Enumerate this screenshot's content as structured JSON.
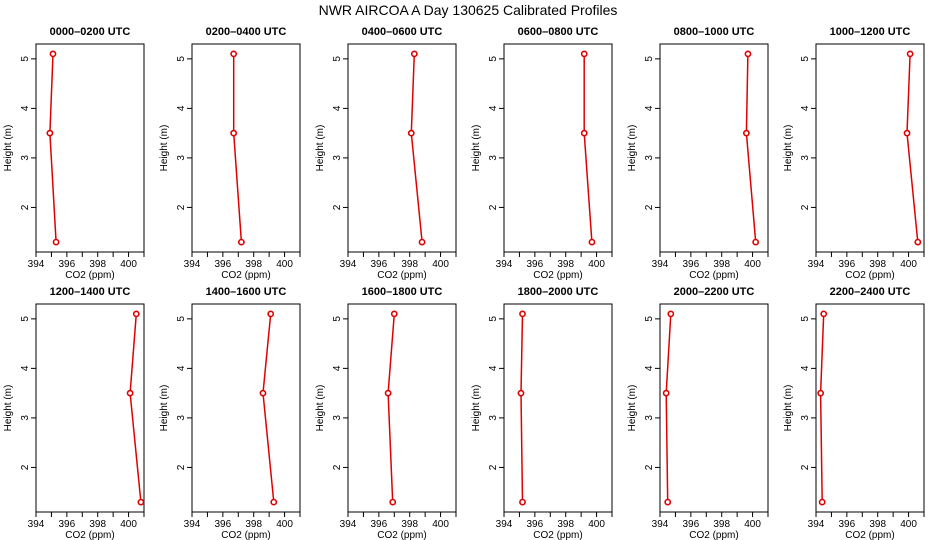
{
  "figure": {
    "title": "NWR AIRCOA A  Day 130625  Calibrated Profiles"
  },
  "chart_data": [
    {
      "type": "line",
      "title": "0000–0200 UTC",
      "xlabel": "CO2 (ppm)",
      "ylabel": "Height (m)",
      "xlim": [
        394,
        401
      ],
      "ylim": [
        1.1,
        5.3
      ],
      "xticks": [
        394,
        396,
        398,
        400
      ],
      "yticks": [
        2,
        3,
        4,
        5
      ],
      "series": [
        {
          "x": [
            395.1,
            394.9,
            395.3
          ],
          "y": [
            5.1,
            3.5,
            1.3
          ]
        }
      ]
    },
    {
      "type": "line",
      "title": "0200–0400 UTC",
      "xlabel": "CO2 (ppm)",
      "ylabel": "Height (m)",
      "xlim": [
        394,
        401
      ],
      "ylim": [
        1.1,
        5.3
      ],
      "xticks": [
        394,
        396,
        398,
        400
      ],
      "yticks": [
        2,
        3,
        4,
        5
      ],
      "series": [
        {
          "x": [
            396.7,
            396.7,
            397.2
          ],
          "y": [
            5.1,
            3.5,
            1.3
          ]
        }
      ]
    },
    {
      "type": "line",
      "title": "0400–0600 UTC",
      "xlabel": "CO2 (ppm)",
      "ylabel": "Height (m)",
      "xlim": [
        394,
        401
      ],
      "ylim": [
        1.1,
        5.3
      ],
      "xticks": [
        394,
        396,
        398,
        400
      ],
      "yticks": [
        2,
        3,
        4,
        5
      ],
      "series": [
        {
          "x": [
            398.3,
            398.1,
            398.8
          ],
          "y": [
            5.1,
            3.5,
            1.3
          ]
        }
      ]
    },
    {
      "type": "line",
      "title": "0600–0800 UTC",
      "xlabel": "CO2 (ppm)",
      "ylabel": "Height (m)",
      "xlim": [
        394,
        401
      ],
      "ylim": [
        1.1,
        5.3
      ],
      "xticks": [
        394,
        396,
        398,
        400
      ],
      "yticks": [
        2,
        3,
        4,
        5
      ],
      "series": [
        {
          "x": [
            399.2,
            399.2,
            399.7
          ],
          "y": [
            5.1,
            3.5,
            1.3
          ]
        }
      ]
    },
    {
      "type": "line",
      "title": "0800–1000 UTC",
      "xlabel": "CO2 (ppm)",
      "ylabel": "Height (m)",
      "xlim": [
        394,
        401
      ],
      "ylim": [
        1.1,
        5.3
      ],
      "xticks": [
        394,
        396,
        398,
        400
      ],
      "yticks": [
        2,
        3,
        4,
        5
      ],
      "series": [
        {
          "x": [
            399.7,
            399.6,
            400.2
          ],
          "y": [
            5.1,
            3.5,
            1.3
          ]
        }
      ]
    },
    {
      "type": "line",
      "title": "1000–1200 UTC",
      "xlabel": "CO2 (ppm)",
      "ylabel": "Height (m)",
      "xlim": [
        394,
        401
      ],
      "ylim": [
        1.1,
        5.3
      ],
      "xticks": [
        394,
        396,
        398,
        400
      ],
      "yticks": [
        2,
        3,
        4,
        5
      ],
      "series": [
        {
          "x": [
            400.1,
            399.9,
            400.6
          ],
          "y": [
            5.1,
            3.5,
            1.3
          ]
        }
      ]
    },
    {
      "type": "line",
      "title": "1200–1400 UTC",
      "xlabel": "CO2 (ppm)",
      "ylabel": "Height (m)",
      "xlim": [
        394,
        401
      ],
      "ylim": [
        1.1,
        5.3
      ],
      "xticks": [
        394,
        396,
        398,
        400
      ],
      "yticks": [
        2,
        3,
        4,
        5
      ],
      "series": [
        {
          "x": [
            400.5,
            400.1,
            400.8
          ],
          "y": [
            5.1,
            3.5,
            1.3
          ]
        }
      ]
    },
    {
      "type": "line",
      "title": "1400–1600 UTC",
      "xlabel": "CO2 (ppm)",
      "ylabel": "Height (m)",
      "xlim": [
        394,
        401
      ],
      "ylim": [
        1.1,
        5.3
      ],
      "xticks": [
        394,
        396,
        398,
        400
      ],
      "yticks": [
        2,
        3,
        4,
        5
      ],
      "series": [
        {
          "x": [
            399.1,
            398.6,
            399.3
          ],
          "y": [
            5.1,
            3.5,
            1.3
          ]
        }
      ]
    },
    {
      "type": "line",
      "title": "1600–1800 UTC",
      "xlabel": "CO2 (ppm)",
      "ylabel": "Height (m)",
      "xlim": [
        394,
        401
      ],
      "ylim": [
        1.1,
        5.3
      ],
      "xticks": [
        394,
        396,
        398,
        400
      ],
      "yticks": [
        2,
        3,
        4,
        5
      ],
      "series": [
        {
          "x": [
            397.0,
            396.6,
            396.9
          ],
          "y": [
            5.1,
            3.5,
            1.3
          ]
        }
      ]
    },
    {
      "type": "line",
      "title": "1800–2000 UTC",
      "xlabel": "CO2 (ppm)",
      "ylabel": "Height (m)",
      "xlim": [
        394,
        401
      ],
      "ylim": [
        1.1,
        5.3
      ],
      "xticks": [
        394,
        396,
        398,
        400
      ],
      "yticks": [
        2,
        3,
        4,
        5
      ],
      "series": [
        {
          "x": [
            395.2,
            395.1,
            395.2
          ],
          "y": [
            5.1,
            3.5,
            1.3
          ]
        }
      ]
    },
    {
      "type": "line",
      "title": "2000–2200 UTC",
      "xlabel": "CO2 (ppm)",
      "ylabel": "Height (m)",
      "xlim": [
        394,
        401
      ],
      "ylim": [
        1.1,
        5.3
      ],
      "xticks": [
        394,
        396,
        398,
        400
      ],
      "yticks": [
        2,
        3,
        4,
        5
      ],
      "series": [
        {
          "x": [
            394.7,
            394.4,
            394.5
          ],
          "y": [
            5.1,
            3.5,
            1.3
          ]
        }
      ]
    },
    {
      "type": "line",
      "title": "2200–2400 UTC",
      "xlabel": "CO2 (ppm)",
      "ylabel": "Height (m)",
      "xlim": [
        394,
        401
      ],
      "ylim": [
        1.1,
        5.3
      ],
      "xticks": [
        394,
        396,
        398,
        400
      ],
      "yticks": [
        2,
        3,
        4,
        5
      ],
      "series": [
        {
          "x": [
            394.5,
            394.3,
            394.4
          ],
          "y": [
            5.1,
            3.5,
            1.3
          ]
        }
      ]
    }
  ]
}
